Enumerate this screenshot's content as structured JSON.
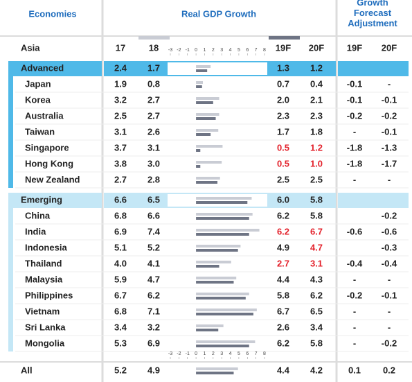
{
  "header": {
    "economies": "Economies",
    "real_gdp": "Real GDP Growth",
    "adjustment": "Growth Forecast Adjustment"
  },
  "columns": {
    "region": "Asia",
    "gdp": [
      "17",
      "18",
      "19F",
      "20F"
    ],
    "adj": [
      "19F",
      "20F"
    ]
  },
  "axis": {
    "lim": [
      -3,
      8
    ],
    "ticks": [
      -3,
      -2,
      -1,
      0,
      1,
      2,
      3,
      4,
      5,
      6,
      7,
      8
    ]
  },
  "colors": {
    "light_bar": "#c9ccd4",
    "dark_bar": "#6e7484",
    "highlight": "#e3202a"
  },
  "groups": [
    {
      "name": "Advanced",
      "color": "#4fb9e8",
      "stripe": "#4fb9e8",
      "gdp": [
        "2.4",
        "1.7",
        "1.3",
        "1.2"
      ],
      "members": [
        {
          "name": "Japan",
          "gdp": [
            "1.9",
            "0.8",
            "0.7",
            "0.4"
          ],
          "adj": [
            "-0.1",
            "-"
          ]
        },
        {
          "name": "Korea",
          "gdp": [
            "3.2",
            "2.7",
            "2.0",
            "2.1"
          ],
          "adj": [
            "-0.1",
            "-0.1"
          ]
        },
        {
          "name": "Australia",
          "gdp": [
            "2.5",
            "2.7",
            "2.3",
            "2.3"
          ],
          "adj": [
            "-0.2",
            "-0.2"
          ]
        },
        {
          "name": "Taiwan",
          "gdp": [
            "3.1",
            "2.6",
            "1.7",
            "1.8"
          ],
          "adj": [
            "-",
            "-0.1"
          ]
        },
        {
          "name": "Singapore",
          "gdp": [
            "3.7",
            "3.1",
            "0.5",
            "1.2"
          ],
          "adj": [
            "-1.8",
            "-1.3"
          ],
          "red": [
            false,
            false,
            true,
            true
          ]
        },
        {
          "name": "Hong Kong",
          "gdp": [
            "3.8",
            "3.0",
            "0.5",
            "1.0"
          ],
          "adj": [
            "-1.8",
            "-1.7"
          ],
          "red": [
            false,
            false,
            true,
            true
          ]
        },
        {
          "name": "New Zealand",
          "gdp": [
            "2.7",
            "2.8",
            "2.5",
            "2.5"
          ],
          "adj": [
            "-",
            "-"
          ]
        }
      ]
    },
    {
      "name": "Emerging",
      "color": "#c4e7f6",
      "stripe": "#c4e7f6",
      "gdp": [
        "6.6",
        "6.5",
        "6.0",
        "5.8"
      ],
      "members": [
        {
          "name": "China",
          "gdp": [
            "6.8",
            "6.6",
            "6.2",
            "5.8"
          ],
          "adj": [
            null,
            "-0.2"
          ]
        },
        {
          "name": "India",
          "gdp": [
            "6.9",
            "7.4",
            "6.2",
            "6.7"
          ],
          "adj": [
            "-0.6",
            "-0.6"
          ],
          "red": [
            false,
            false,
            true,
            true
          ]
        },
        {
          "name": "Indonesia",
          "gdp": [
            "5.1",
            "5.2",
            "4.9",
            "4.7"
          ],
          "adj": [
            null,
            "-0.3"
          ],
          "red": [
            false,
            false,
            false,
            true
          ]
        },
        {
          "name": "Thailand",
          "gdp": [
            "4.0",
            "4.1",
            "2.7",
            "3.1"
          ],
          "adj": [
            "-0.4",
            "-0.4"
          ],
          "red": [
            false,
            false,
            true,
            true
          ]
        },
        {
          "name": "Malaysia",
          "gdp": [
            "5.9",
            "4.7",
            "4.4",
            "4.3"
          ],
          "adj": [
            "-",
            "-"
          ]
        },
        {
          "name": "Philippines",
          "gdp": [
            "6.7",
            "6.2",
            "5.8",
            "6.2"
          ],
          "adj": [
            "-0.2",
            "-0.1"
          ]
        },
        {
          "name": "Vietnam",
          "gdp": [
            "6.8",
            "7.1",
            "6.7",
            "6.5"
          ],
          "adj": [
            "-",
            "-"
          ]
        },
        {
          "name": "Sri Lanka",
          "gdp": [
            "3.4",
            "3.2",
            "2.6",
            "3.4"
          ],
          "adj": [
            "-",
            "-"
          ]
        },
        {
          "name": "Mongolia",
          "gdp": [
            "5.3",
            "6.9",
            "6.2",
            "5.8"
          ],
          "adj": [
            "-",
            "-0.2"
          ]
        }
      ]
    }
  ],
  "total": {
    "name": "All",
    "gdp": [
      "5.2",
      "4.9",
      "4.4",
      "4.2"
    ],
    "adj": [
      "0.1",
      "0.2"
    ]
  }
}
